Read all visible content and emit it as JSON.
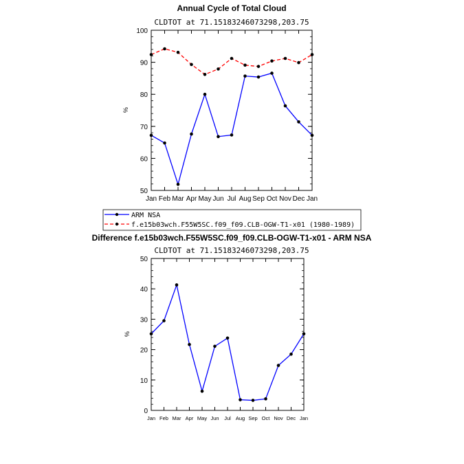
{
  "chart_data": [
    {
      "type": "line",
      "title": "Annual Cycle of Total Cloud",
      "subtitle": "CLDTOT at 71.15183246073298,203.75",
      "ylabel": "%",
      "xlabel": "",
      "categories": [
        "Jan",
        "Feb",
        "Mar",
        "Apr",
        "May",
        "Jun",
        "Jul",
        "Aug",
        "Sep",
        "Oct",
        "Nov",
        "Dec",
        "Jan"
      ],
      "ylim": [
        50,
        100
      ],
      "yticks": [
        50,
        60,
        70,
        80,
        90,
        100
      ],
      "series": [
        {
          "name": "ARM NSA",
          "color": "#0000ff",
          "dashed": false,
          "values": [
            67.2,
            64.8,
            51.9,
            67.6,
            80.0,
            66.8,
            67.3,
            85.7,
            85.4,
            86.6,
            76.4,
            71.4,
            67.2
          ]
        },
        {
          "name": "f.e15b03wch.F55W5SC.f09_f09.CLB-OGW-T1-x01 (1980-1989)",
          "color": "#ff0000",
          "dashed": true,
          "values": [
            92.4,
            94.2,
            93.1,
            89.3,
            86.2,
            87.9,
            91.2,
            89.1,
            88.7,
            90.4,
            91.2,
            89.9,
            92.4
          ]
        }
      ]
    },
    {
      "type": "line",
      "title": "Difference f.e15b03wch.F55W5SC.f09_f09.CLB-OGW-T1-x01 - ARM NSA",
      "subtitle": "CLDTOT at 71.15183246073298,203.75",
      "ylabel": "%",
      "xlabel": "",
      "categories": [
        "Jan",
        "Feb",
        "Mar",
        "Apr",
        "May",
        "Jun",
        "Jul",
        "Aug",
        "Sep",
        "Oct",
        "Nov",
        "Dec",
        "Jan"
      ],
      "ylim": [
        0,
        50
      ],
      "yticks": [
        0,
        10,
        20,
        30,
        40,
        50
      ],
      "series": [
        {
          "name": "Difference",
          "color": "#0000ff",
          "dashed": false,
          "values": [
            25.2,
            29.5,
            41.3,
            21.7,
            6.3,
            21.1,
            23.8,
            3.5,
            3.3,
            3.8,
            14.8,
            18.5,
            25.2
          ]
        }
      ]
    }
  ],
  "legend": {
    "items": [
      {
        "label": "ARM NSA"
      },
      {
        "label": "f.e15b03wch.F55W5SC.f09_f09.CLB-OGW-T1-x01 (1980-1989)"
      }
    ]
  }
}
